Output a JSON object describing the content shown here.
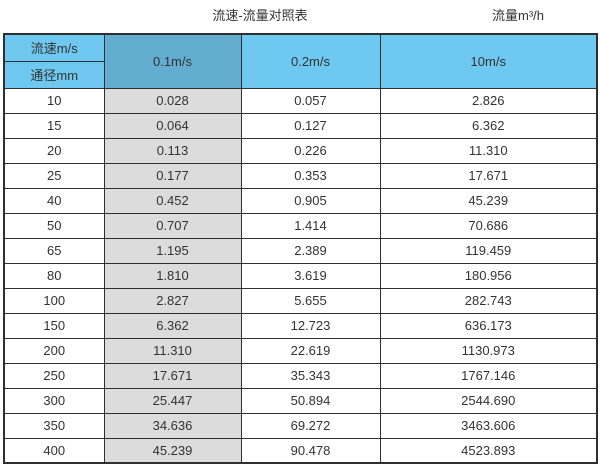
{
  "captions": {
    "left": "流速-流量对照表",
    "right": "流量m³/h"
  },
  "header": {
    "corner_top": "流速m/s",
    "corner_bottom": "通径mm",
    "velocity_columns": [
      "0.1m/s",
      "0.2m/s",
      "10m/s"
    ]
  },
  "chart_data": {
    "type": "table",
    "title": "流速-流量对照表",
    "flow_unit_label": "流量m³/h",
    "row_header_label_top": "流速m/s",
    "row_header_label_bottom": "通径mm",
    "columns": [
      "通径mm",
      "0.1m/s",
      "0.2m/s",
      "10m/s"
    ],
    "highlighted_column": "0.1m/s",
    "rows": [
      [
        "10",
        "0.028",
        "0.057",
        "2.826"
      ],
      [
        "15",
        "0.064",
        "0.127",
        "6.362"
      ],
      [
        "20",
        "0.113",
        "0.226",
        "11.310"
      ],
      [
        "25",
        "0.177",
        "0.353",
        "17.671"
      ],
      [
        "40",
        "0.452",
        "0.905",
        "45.239"
      ],
      [
        "50",
        "0.707",
        "1.414",
        "70.686"
      ],
      [
        "65",
        "1.195",
        "2.389",
        "119.459"
      ],
      [
        "80",
        "1.810",
        "3.619",
        "180.956"
      ],
      [
        "100",
        "2.827",
        "5.655",
        "282.743"
      ],
      [
        "150",
        "6.362",
        "12.723",
        "636.173"
      ],
      [
        "200",
        "11.310",
        "22.619",
        "1130.973"
      ],
      [
        "250",
        "17.671",
        "35.343",
        "1767.146"
      ],
      [
        "300",
        "25.447",
        "50.894",
        "2544.690"
      ],
      [
        "350",
        "34.636",
        "69.272",
        "3463.606"
      ],
      [
        "400",
        "45.239",
        "90.478",
        "4523.893"
      ]
    ]
  },
  "colors": {
    "header_blue": "#6FC8F0",
    "header_blue_dark": "#63AED0",
    "column_gray": "#DCDCDC",
    "border_dark": "#2F2F2F",
    "text_color": "#333333",
    "page_bg": "#FFFFFF"
  }
}
